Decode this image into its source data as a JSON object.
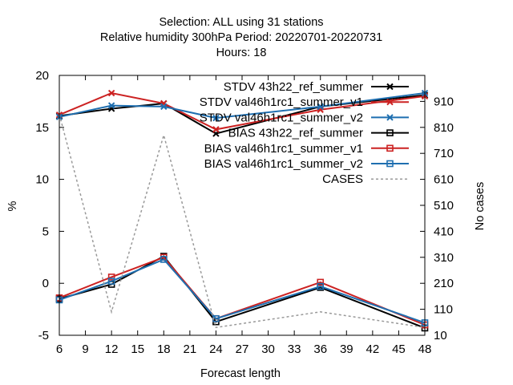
{
  "chart_data": {
    "type": "line",
    "title_lines": [
      "Selection: ALL using    31 stations",
      "Relative humidity 300hPa   Period: 20220701-20220731",
      "Hours:  18"
    ],
    "xlabel": "Forecast length",
    "ylabel": "%",
    "y2label": "No cases",
    "xlim": [
      6,
      48
    ],
    "ylim": [
      -5,
      20
    ],
    "y2lim": [
      10,
      1010
    ],
    "x_ticks": [
      6,
      9,
      12,
      15,
      18,
      21,
      24,
      27,
      30,
      33,
      36,
      39,
      42,
      45,
      48
    ],
    "y_ticks": [
      -5,
      0,
      5,
      10,
      15,
      20
    ],
    "y2_ticks": [
      10,
      110,
      210,
      310,
      410,
      510,
      610,
      710,
      810,
      910
    ],
    "x": [
      6,
      12,
      18,
      24,
      36,
      48
    ],
    "grid": false,
    "legend_position": "top-right",
    "series": [
      {
        "name": "STDV 43h22_ref_summer",
        "legend": "STDV 43h22_ref_summer",
        "stat": "STDV",
        "color": "#000000",
        "marker": "x",
        "axis": "y",
        "values": [
          16.1,
          16.8,
          17.3,
          14.4,
          17.0,
          18.1
        ]
      },
      {
        "name": "STDV val46h1rc1_summer_v1",
        "legend": "STDV val46h1rc1_summer_v1",
        "stat": "STDV",
        "color": "#cc2222",
        "marker": "x",
        "axis": "y",
        "values": [
          16.2,
          18.3,
          17.3,
          14.8,
          16.7,
          18.0
        ]
      },
      {
        "name": "STDV val46h1rc1_summer_v2",
        "legend": "STDV val46h1rc1_summer_v2",
        "stat": "STDV",
        "color": "#1f6fb0",
        "marker": "x",
        "axis": "y",
        "values": [
          16.0,
          17.1,
          17.0,
          15.9,
          17.0,
          18.3
        ]
      },
      {
        "name": "BIAS 43h22_ref_summer",
        "legend": "BIAS 43h22_ref_summer",
        "stat": "BIAS",
        "color": "#000000",
        "marker": "square",
        "axis": "y",
        "values": [
          -1.5,
          -0.1,
          2.6,
          -3.7,
          -0.4,
          -4.3
        ]
      },
      {
        "name": "BIAS val46h1rc1_summer_v1",
        "legend": "BIAS val46h1rc1_summer_v1",
        "stat": "BIAS",
        "color": "#cc2222",
        "marker": "square",
        "axis": "y",
        "values": [
          -1.4,
          0.6,
          2.5,
          -3.4,
          0.1,
          -4.0
        ]
      },
      {
        "name": "BIAS val46h1rc1_summer_v2",
        "legend": "BIAS val46h1rc1_summer_v2",
        "stat": "BIAS",
        "color": "#1f6fb0",
        "marker": "square",
        "axis": "y",
        "values": [
          -1.6,
          0.2,
          2.3,
          -3.4,
          -0.3,
          -3.8
        ]
      },
      {
        "name": "CASES",
        "legend": "CASES",
        "stat": "CASES",
        "color": "#999999",
        "marker": "none",
        "dashed": true,
        "axis": "y2",
        "values": [
          860,
          100,
          780,
          40,
          100,
          40
        ]
      }
    ]
  }
}
